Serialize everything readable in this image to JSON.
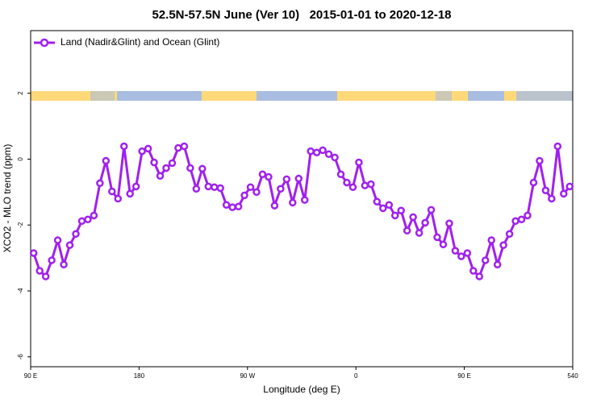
{
  "chart_data": {
    "type": "line",
    "title": "52.5N-57.5N June (Ver 10)   2015-01-01 to 2020-12-18",
    "x_label": "Longitude (deg E)",
    "y_label": "XCO2 - MLO trend (ppm)",
    "xlim": [
      90,
      540
    ],
    "xticks": [
      {
        "value": 90,
        "label": "90 E"
      },
      180,
      {
        "value": 270,
        "label": "90 W"
      },
      {
        "value": 360,
        "label": "0"
      },
      {
        "value": 450,
        "label": "90 E"
      },
      540
    ],
    "ylim": [
      -6.3,
      3.9
    ],
    "yticks": [
      -6,
      -4,
      -2,
      0,
      2
    ],
    "legend": "top-left",
    "x": [
      92.5,
      97.5,
      102.5,
      107.5,
      112.5,
      117.5,
      122.5,
      127.5,
      132.5,
      137.5,
      142.5,
      147.5,
      152.5,
      157.5,
      162.5,
      167.5,
      172.5,
      177.5,
      182.5,
      187.5,
      192.5,
      197.5,
      202.5,
      207.5,
      212.5,
      217.5,
      222.5,
      227.5,
      232.5,
      237.5,
      242.5,
      247.5,
      252.5,
      257.5,
      262.5,
      267.5,
      272.5,
      277.5,
      282.5,
      287.5,
      292.5,
      297.5,
      302.5,
      307.5,
      312.5,
      317.5,
      322.5,
      327.5,
      332.5,
      337.5,
      342.5,
      347.5,
      352.5,
      357.5,
      362.5,
      367.5,
      372.5,
      377.5,
      382.5,
      387.5,
      392.5,
      397.5,
      402.5,
      407.5,
      412.5,
      417.5,
      422.5,
      427.5,
      432.5,
      437.5,
      442.5,
      447.5,
      452.5,
      457.5,
      462.5,
      467.5,
      472.5,
      477.5,
      482.5,
      487.5,
      492.5,
      497.5,
      502.5,
      507.5,
      512.5,
      517.5,
      522.5,
      527.5,
      532.5,
      537.5
    ],
    "series": [
      {
        "name": "Land (Nadir&Glint) and Ocean (Glint)",
        "color": "#a020f0",
        "values": [
          -2.85,
          -3.39,
          -3.56,
          -3.07,
          -2.46,
          -3.2,
          -2.61,
          -2.27,
          -1.88,
          -1.83,
          -1.71,
          -0.73,
          -0.05,
          -0.98,
          -1.2,
          0.39,
          -1.05,
          -0.83,
          0.24,
          0.32,
          -0.1,
          -0.51,
          -0.27,
          -0.12,
          0.34,
          0.39,
          -0.27,
          -0.9,
          -0.29,
          -0.83,
          -0.85,
          -0.88,
          -1.39,
          -1.46,
          -1.44,
          -1.1,
          -0.85,
          -1.0,
          -0.46,
          -0.54,
          -1.41,
          -0.9,
          -0.61,
          -1.32,
          -0.59,
          -1.24,
          0.24,
          0.2,
          0.27,
          0.15,
          0.05,
          -0.46,
          -0.71,
          -0.85,
          -0.1,
          -0.8,
          -0.76,
          -1.29,
          -1.49,
          -1.39,
          -1.71,
          -1.56,
          -2.17,
          -1.76,
          -2.24,
          -1.93,
          -1.54,
          -2.37,
          -2.59,
          -1.95,
          -2.78,
          -2.95,
          -2.85,
          -3.39,
          -3.56,
          -3.07,
          -2.46,
          -3.2,
          -2.61,
          -2.27,
          -1.88,
          -1.83,
          -1.71,
          -0.71,
          -0.05,
          -0.95,
          -1.2,
          0.39,
          -1.05,
          -0.83
        ]
      }
    ]
  }
}
